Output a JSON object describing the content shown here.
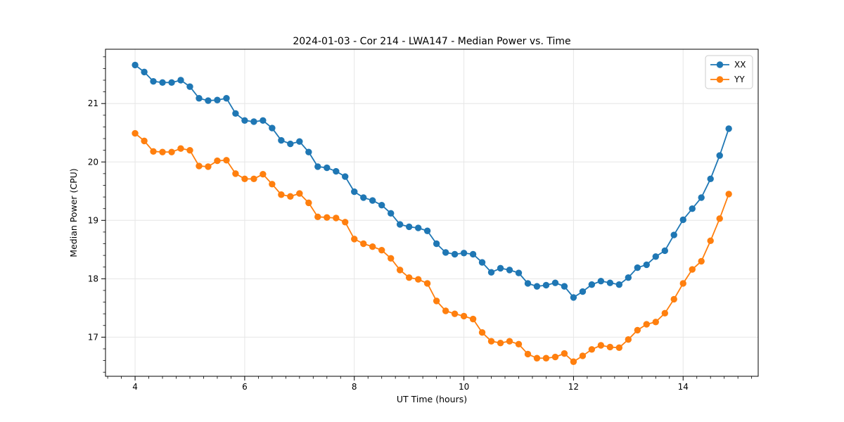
{
  "chart_data": {
    "type": "line",
    "title": "2024-01-03 - Cor 214 - LWA147 - Median Power vs. Time",
    "xlabel": "UT Time (hours)",
    "ylabel": "Median Power (CPU)",
    "xlim": [
      3.46,
      15.37
    ],
    "ylim": [
      16.33,
      21.93
    ],
    "xticks": [
      4,
      6,
      8,
      10,
      12,
      14
    ],
    "yticks": [
      17,
      18,
      19,
      20,
      21
    ],
    "x_minor_step": 0.25,
    "y_minor_step": 0.2,
    "grid": true,
    "grid_color": "#e6e6e6",
    "legend_position": "upper right",
    "x": [
      4.0,
      4.167,
      4.333,
      4.5,
      4.667,
      4.833,
      5.0,
      5.167,
      5.333,
      5.5,
      5.667,
      5.833,
      6.0,
      6.167,
      6.333,
      6.5,
      6.667,
      6.833,
      7.0,
      7.167,
      7.333,
      7.5,
      7.667,
      7.833,
      8.0,
      8.167,
      8.333,
      8.5,
      8.667,
      8.833,
      9.0,
      9.167,
      9.333,
      9.5,
      9.667,
      9.833,
      10.0,
      10.167,
      10.333,
      10.5,
      10.667,
      10.833,
      11.0,
      11.167,
      11.333,
      11.5,
      11.667,
      11.833,
      12.0,
      12.167,
      12.333,
      12.5,
      12.667,
      12.833,
      13.0,
      13.167,
      13.333,
      13.5,
      13.667,
      13.833,
      14.0,
      14.167,
      14.333,
      14.5,
      14.667,
      14.833
    ],
    "series": [
      {
        "name": "XX",
        "color": "#1f77b4",
        "values": [
          21.66,
          21.54,
          21.38,
          21.36,
          21.36,
          21.4,
          21.29,
          21.09,
          21.05,
          21.06,
          21.09,
          20.83,
          20.71,
          20.69,
          20.71,
          20.58,
          20.37,
          20.31,
          20.35,
          20.17,
          19.92,
          19.9,
          19.84,
          19.75,
          19.49,
          19.39,
          19.34,
          19.26,
          19.12,
          18.93,
          18.89,
          18.87,
          18.82,
          18.6,
          18.45,
          18.42,
          18.44,
          18.42,
          18.28,
          18.11,
          18.18,
          18.15,
          18.1,
          17.92,
          17.87,
          17.89,
          17.93,
          17.87,
          17.68,
          17.78,
          17.9,
          17.96,
          17.93,
          17.9,
          18.02,
          18.19,
          18.24,
          18.38,
          18.48,
          18.75,
          19.01,
          19.2,
          19.39,
          19.71,
          20.11,
          20.57
        ]
      },
      {
        "name": "YY",
        "color": "#ff7f0e",
        "values": [
          20.49,
          20.36,
          20.18,
          20.17,
          20.17,
          20.23,
          20.2,
          19.93,
          19.92,
          20.02,
          20.03,
          19.8,
          19.71,
          19.71,
          19.79,
          19.62,
          19.44,
          19.41,
          19.46,
          19.3,
          19.06,
          19.05,
          19.04,
          18.97,
          18.68,
          18.6,
          18.55,
          18.49,
          18.35,
          18.15,
          18.02,
          17.99,
          17.92,
          17.62,
          17.45,
          17.4,
          17.36,
          17.31,
          17.08,
          16.93,
          16.9,
          16.93,
          16.88,
          16.71,
          16.64,
          16.64,
          16.66,
          16.72,
          16.58,
          16.68,
          16.79,
          16.86,
          16.83,
          16.82,
          16.96,
          17.12,
          17.22,
          17.26,
          17.41,
          17.65,
          17.92,
          18.16,
          18.3,
          18.65,
          19.03,
          19.45
        ]
      }
    ]
  }
}
